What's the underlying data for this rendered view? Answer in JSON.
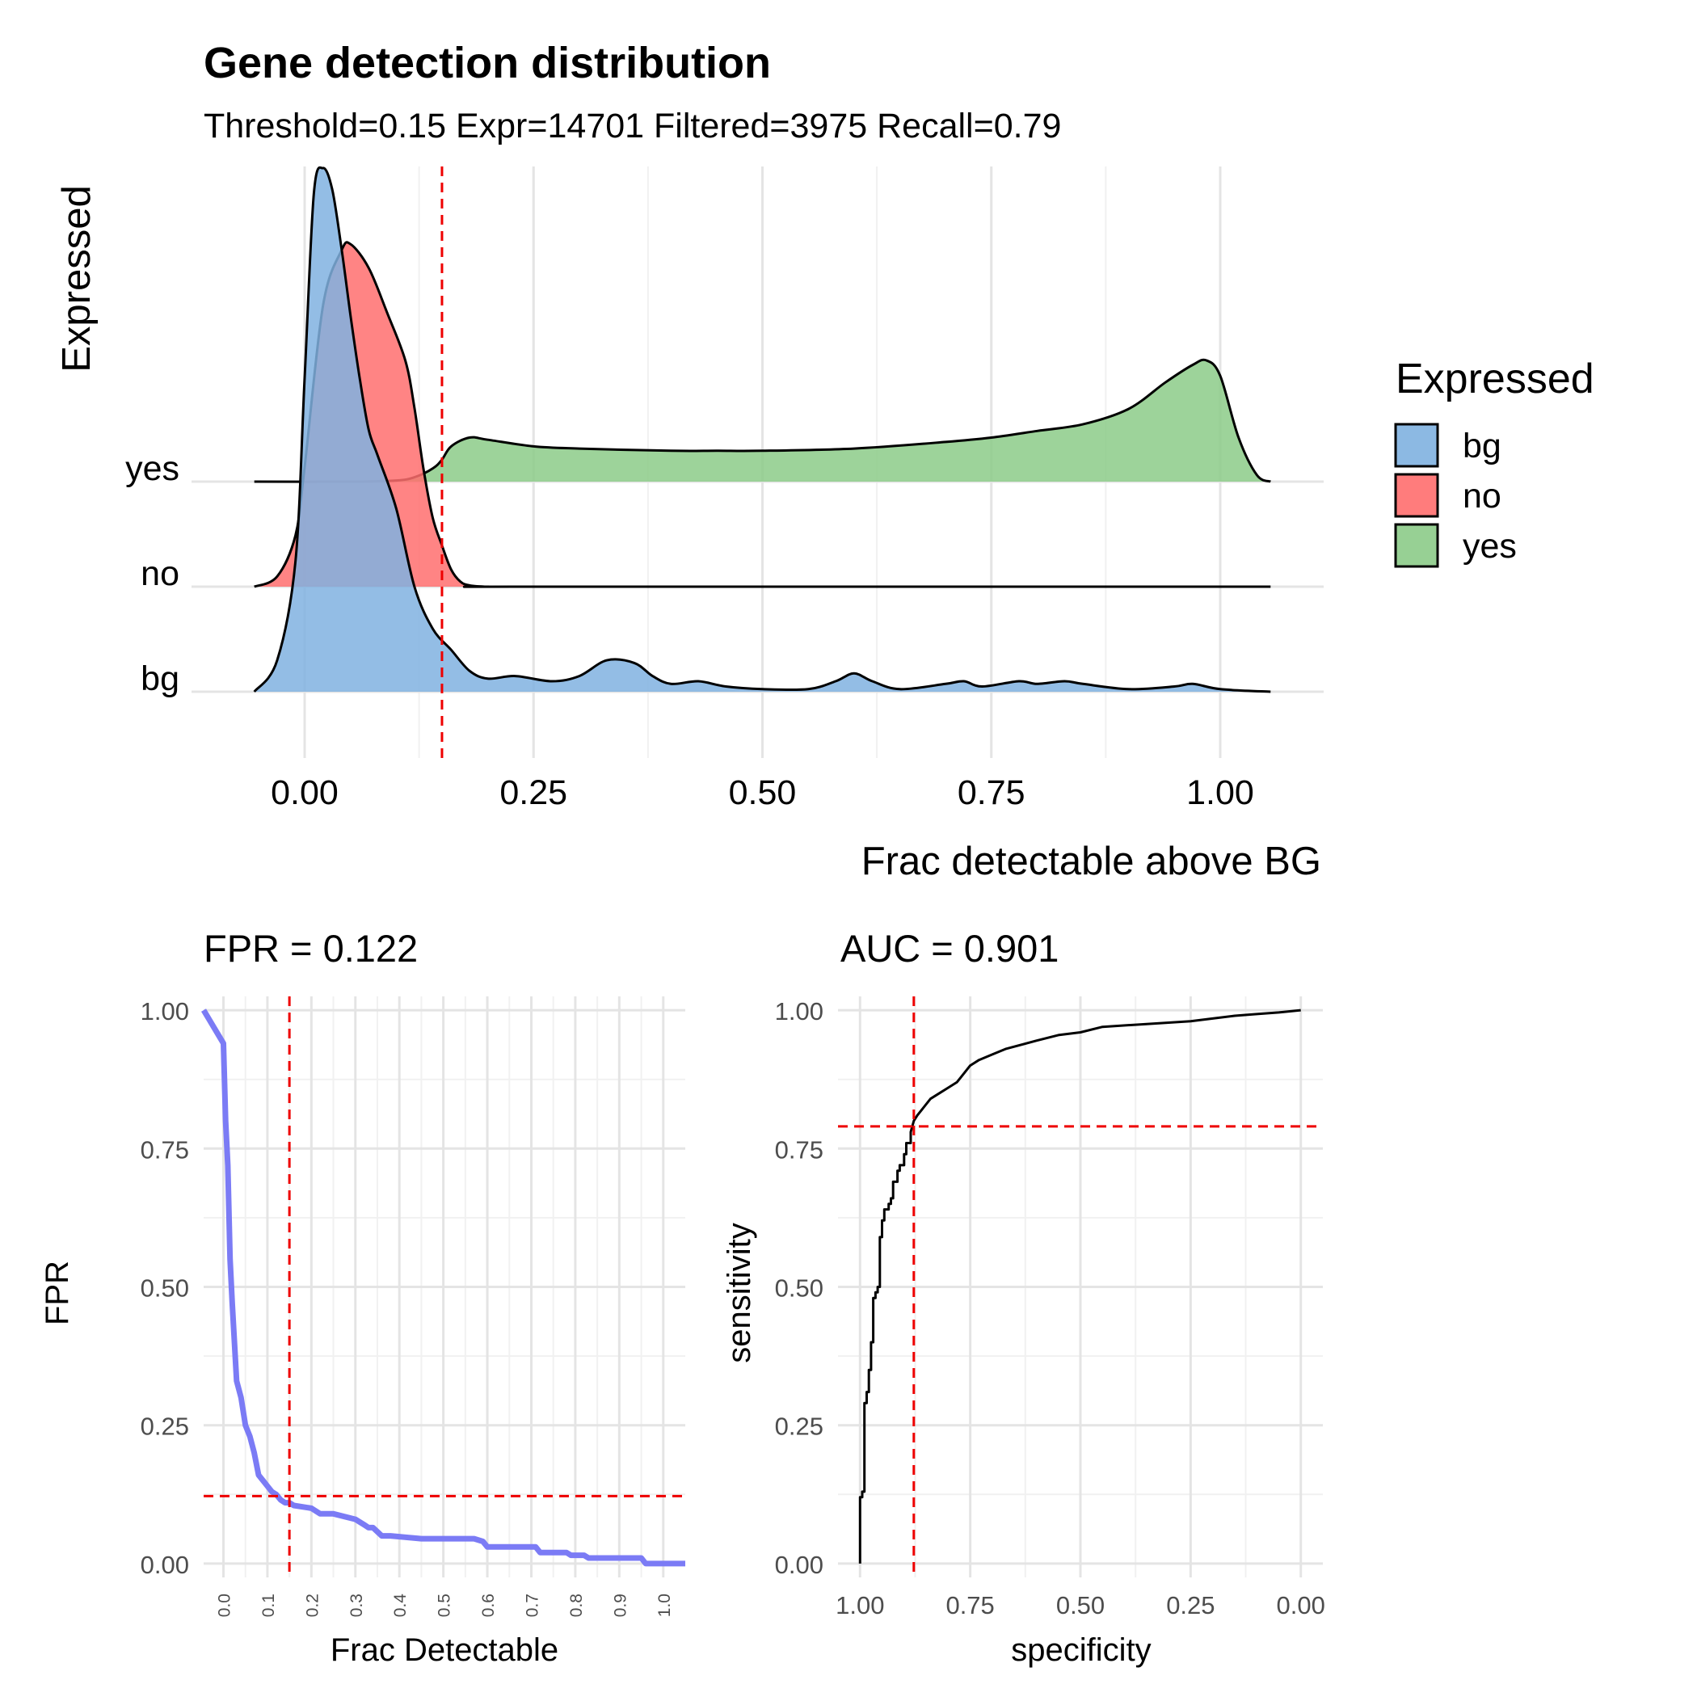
{
  "chart_data": [
    {
      "type": "area",
      "title": "Gene detection distribution",
      "subtitle": "Threshold=0.15 Expr=14701 Filtered=3975 Recall=0.79",
      "xlabel": "Frac detectable above BG",
      "ylabel": "Expressed",
      "xlim": [
        -0.06,
        1.06
      ],
      "x_ticks": [
        0,
        0.25,
        0.5,
        0.75,
        1
      ],
      "x_tick_labels": [
        "0.00",
        "0.25",
        "0.50",
        "0.75",
        "1.00"
      ],
      "categories": [
        "bg",
        "no",
        "yes"
      ],
      "threshold": 0.15,
      "grid": true,
      "legend": {
        "title": "Expressed",
        "position": "right",
        "entries": [
          {
            "label": "bg",
            "color": "#80b1e0"
          },
          {
            "label": "no",
            "color": "#ff6e6e"
          },
          {
            "label": "yes",
            "color": "#8ccb88"
          }
        ]
      },
      "series": [
        {
          "name": "bg",
          "color": "#80b1e0",
          "x": [
            -0.055,
            -0.03,
            -0.01,
            0.0,
            0.01,
            0.02,
            0.03,
            0.04,
            0.05,
            0.06,
            0.07,
            0.08,
            0.1,
            0.12,
            0.14,
            0.16,
            0.18,
            0.2,
            0.23,
            0.27,
            0.3,
            0.33,
            0.36,
            0.38,
            0.4,
            0.43,
            0.46,
            0.5,
            0.55,
            0.58,
            0.6,
            0.62,
            0.65,
            0.7,
            0.72,
            0.74,
            0.78,
            0.8,
            0.83,
            0.85,
            0.9,
            0.95,
            0.97,
            1.0,
            1.055
          ],
          "y": [
            0.0,
            0.06,
            0.25,
            0.6,
            0.95,
            1.0,
            0.96,
            0.85,
            0.72,
            0.6,
            0.5,
            0.45,
            0.35,
            0.2,
            0.12,
            0.08,
            0.04,
            0.025,
            0.03,
            0.02,
            0.03,
            0.06,
            0.055,
            0.03,
            0.015,
            0.02,
            0.01,
            0.005,
            0.005,
            0.02,
            0.035,
            0.02,
            0.005,
            0.015,
            0.02,
            0.01,
            0.02,
            0.015,
            0.02,
            0.015,
            0.005,
            0.01,
            0.015,
            0.005,
            0.0
          ]
        },
        {
          "name": "no",
          "color": "#ff6e6e",
          "x": [
            -0.055,
            -0.03,
            -0.01,
            0.0,
            0.02,
            0.04,
            0.05,
            0.07,
            0.09,
            0.11,
            0.12,
            0.13,
            0.14,
            0.15,
            0.16,
            0.17,
            0.18,
            0.2,
            0.25,
            1.055
          ],
          "y": [
            0.0,
            0.03,
            0.15,
            0.35,
            0.82,
            0.98,
            1.0,
            0.93,
            0.8,
            0.66,
            0.52,
            0.34,
            0.2,
            0.12,
            0.05,
            0.015,
            0.004,
            0.0,
            0.0,
            0.0
          ]
        },
        {
          "name": "yes",
          "color": "#8ccb88",
          "x": [
            -0.055,
            0.05,
            0.1,
            0.12,
            0.14,
            0.15,
            0.16,
            0.18,
            0.2,
            0.25,
            0.3,
            0.4,
            0.45,
            0.5,
            0.6,
            0.7,
            0.75,
            0.8,
            0.85,
            0.9,
            0.94,
            0.97,
            0.985,
            1.0,
            1.02,
            1.04,
            1.055
          ],
          "y": [
            0.0,
            0.0,
            0.005,
            0.02,
            0.06,
            0.1,
            0.16,
            0.2,
            0.19,
            0.16,
            0.15,
            0.14,
            0.14,
            0.14,
            0.15,
            0.18,
            0.2,
            0.23,
            0.26,
            0.33,
            0.45,
            0.53,
            0.55,
            0.48,
            0.2,
            0.03,
            0.0
          ]
        }
      ]
    },
    {
      "type": "line",
      "title": "FPR = 0.122",
      "xlabel": "Frac Detectable",
      "ylabel": "FPR",
      "xlim": [
        -0.045,
        1.05
      ],
      "ylim": [
        -0.025,
        1.025
      ],
      "x_ticks": [
        0,
        0.1,
        0.2,
        0.3,
        0.4,
        0.5,
        0.6,
        0.7,
        0.8,
        0.9,
        1
      ],
      "x_tick_labels": [
        "0.0",
        "0.1",
        "0.2",
        "0.3",
        "0.4",
        "0.5",
        "0.6",
        "0.7",
        "0.8",
        "0.9",
        "1.0"
      ],
      "y_ticks": [
        0,
        0.25,
        0.5,
        0.75,
        1
      ],
      "y_tick_labels": [
        "0.00",
        "0.25",
        "0.50",
        "0.75",
        "1.00"
      ],
      "threshold_x": 0.15,
      "threshold_y": 0.122,
      "grid": true,
      "series": [
        {
          "color": "#7b7bf5",
          "x": [
            -0.045,
            0.0,
            0.005,
            0.01,
            0.015,
            0.02,
            0.025,
            0.03,
            0.04,
            0.05,
            0.06,
            0.07,
            0.08,
            0.09,
            0.1,
            0.11,
            0.12,
            0.13,
            0.14,
            0.15,
            0.16,
            0.2,
            0.22,
            0.24,
            0.25,
            0.3,
            0.32,
            0.33,
            0.34,
            0.36,
            0.37,
            0.38,
            0.45,
            0.57,
            0.59,
            0.6,
            0.71,
            0.72,
            0.78,
            0.79,
            0.82,
            0.83,
            0.95,
            0.96,
            1.05
          ],
          "y": [
            1.0,
            0.94,
            0.8,
            0.72,
            0.55,
            0.47,
            0.4,
            0.33,
            0.3,
            0.25,
            0.23,
            0.2,
            0.16,
            0.15,
            0.14,
            0.13,
            0.125,
            0.115,
            0.11,
            0.11,
            0.105,
            0.1,
            0.09,
            0.09,
            0.09,
            0.08,
            0.07,
            0.065,
            0.065,
            0.05,
            0.05,
            0.05,
            0.045,
            0.045,
            0.04,
            0.03,
            0.03,
            0.02,
            0.02,
            0.015,
            0.015,
            0.01,
            0.01,
            0.0,
            0.0
          ]
        }
      ]
    },
    {
      "type": "line",
      "title": "AUC = 0.901",
      "xlabel": "specificity",
      "ylabel": "sensitivity",
      "xlim": [
        1.05,
        -0.05
      ],
      "ylim": [
        -0.025,
        1.025
      ],
      "x_ticks": [
        1,
        0.75,
        0.5,
        0.25,
        0
      ],
      "x_tick_labels": [
        "1.00",
        "0.75",
        "0.50",
        "0.25",
        "0.00"
      ],
      "y_ticks": [
        0,
        0.25,
        0.5,
        0.75,
        1
      ],
      "y_tick_labels": [
        "0.00",
        "0.25",
        "0.50",
        "0.75",
        "1.00"
      ],
      "threshold_x": 0.878,
      "threshold_y": 0.79,
      "grid": true,
      "series": [
        {
          "color": "#000000",
          "x": [
            1.0,
            1.0,
            0.995,
            0.995,
            0.99,
            0.99,
            0.985,
            0.985,
            0.98,
            0.98,
            0.975,
            0.975,
            0.97,
            0.97,
            0.965,
            0.965,
            0.96,
            0.96,
            0.955,
            0.955,
            0.95,
            0.95,
            0.945,
            0.945,
            0.935,
            0.935,
            0.93,
            0.93,
            0.925,
            0.925,
            0.915,
            0.915,
            0.91,
            0.91,
            0.9,
            0.9,
            0.895,
            0.895,
            0.885,
            0.885,
            0.878,
            0.87,
            0.86,
            0.84,
            0.82,
            0.8,
            0.78,
            0.77,
            0.75,
            0.73,
            0.7,
            0.67,
            0.6,
            0.55,
            0.5,
            0.45,
            0.35,
            0.25,
            0.2,
            0.15,
            0.1,
            0.05,
            0.0
          ],
          "y": [
            0.0,
            0.12,
            0.12,
            0.13,
            0.13,
            0.29,
            0.29,
            0.31,
            0.31,
            0.35,
            0.35,
            0.4,
            0.4,
            0.48,
            0.48,
            0.49,
            0.49,
            0.5,
            0.5,
            0.59,
            0.59,
            0.62,
            0.62,
            0.64,
            0.64,
            0.65,
            0.65,
            0.66,
            0.66,
            0.69,
            0.69,
            0.71,
            0.71,
            0.72,
            0.72,
            0.74,
            0.74,
            0.76,
            0.76,
            0.78,
            0.8,
            0.81,
            0.82,
            0.84,
            0.85,
            0.86,
            0.87,
            0.88,
            0.9,
            0.91,
            0.92,
            0.93,
            0.945,
            0.955,
            0.96,
            0.97,
            0.975,
            0.98,
            0.985,
            0.99,
            0.993,
            0.996,
            1.0
          ]
        }
      ]
    }
  ]
}
